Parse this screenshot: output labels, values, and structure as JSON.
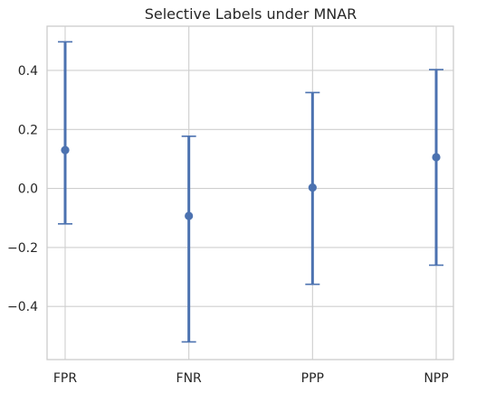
{
  "chart_data": {
    "type": "scatter",
    "style": "point-with-error-bars",
    "title": "Selective Labels under MNAR",
    "xlabel": "",
    "ylabel": "",
    "categories": [
      "FPR",
      "FNR",
      "PPP",
      "NPP"
    ],
    "values": [
      0.13,
      -0.093,
      0.003,
      0.106
    ],
    "error_low": [
      -0.12,
      -0.52,
      -0.325,
      -0.26
    ],
    "error_high": [
      0.497,
      0.177,
      0.325,
      0.403
    ],
    "ylim": [
      -0.58,
      0.55
    ],
    "yticks": [
      0.4,
      0.2,
      0.0,
      -0.2,
      -0.4
    ],
    "ytick_labels": [
      "0.4",
      "0.2",
      "0.0",
      "−0.2",
      "−0.4"
    ],
    "grid": true,
    "legend": "none",
    "colors": {
      "series": "#4c72b0",
      "grid": "#cfcfcf",
      "frame": "#cccccc",
      "text": "#262626"
    }
  }
}
